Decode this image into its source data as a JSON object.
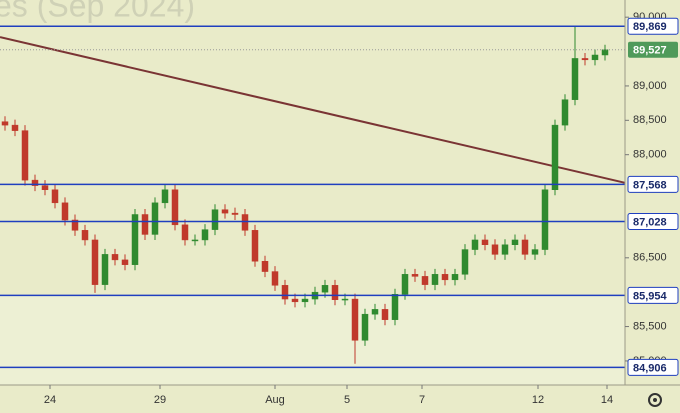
{
  "chart_data": {
    "type": "candlestick",
    "title": "es (Sep 2024)",
    "x": [
      0,
      1,
      2,
      3,
      4,
      5,
      6,
      7,
      8,
      9,
      10,
      11,
      12,
      13,
      14,
      15,
      16,
      17,
      18,
      19,
      20,
      21,
      22,
      23,
      24,
      25,
      26,
      27,
      28,
      29,
      30,
      31,
      32,
      33,
      34,
      35,
      36,
      37,
      38,
      39,
      40,
      41,
      42,
      43,
      44,
      45,
      46,
      47,
      48,
      49,
      50,
      51,
      52,
      53,
      54,
      55,
      56,
      57,
      58,
      59,
      60
    ],
    "open": [
      88480,
      88430,
      88350,
      87630,
      87550,
      87490,
      87300,
      87050,
      86900,
      86760,
      86110,
      86550,
      86470,
      86400,
      87130,
      86840,
      87300,
      87490,
      86980,
      86760,
      86760,
      86910,
      87200,
      87150,
      87130,
      86900,
      86450,
      86300,
      86100,
      85900,
      85860,
      85900,
      86000,
      86100,
      85890,
      85900,
      85300,
      85680,
      85750,
      85600,
      85970,
      86260,
      86230,
      86110,
      86260,
      86180,
      86260,
      86620,
      86760,
      86690,
      86550,
      86690,
      86760,
      86550,
      86620,
      87490,
      88430,
      88800,
      89400,
      89380,
      89450
    ],
    "high": [
      88560,
      88510,
      88430,
      87710,
      87630,
      87570,
      87380,
      87130,
      86980,
      86840,
      86630,
      86630,
      86550,
      87210,
      87210,
      87380,
      87570,
      87570,
      87060,
      86840,
      86990,
      87280,
      87280,
      87230,
      87210,
      86980,
      86530,
      86380,
      86180,
      85980,
      85980,
      86080,
      86180,
      86180,
      85980,
      85980,
      85760,
      85830,
      85830,
      86050,
      86340,
      86340,
      86310,
      86340,
      86340,
      86340,
      86700,
      86840,
      86840,
      86770,
      86770,
      86840,
      86840,
      86700,
      87570,
      88510,
      88880,
      89869,
      89480,
      89530,
      89600
    ],
    "low": [
      88350,
      88270,
      87550,
      87470,
      87410,
      87220,
      86970,
      86820,
      86680,
      85990,
      86030,
      86390,
      86320,
      86320,
      86760,
      86760,
      87220,
      86900,
      86680,
      86680,
      86680,
      86830,
      87070,
      87050,
      86820,
      86370,
      86220,
      86020,
      85820,
      85780,
      85780,
      85820,
      85920,
      85810,
      85810,
      84960,
      85220,
      85600,
      85520,
      85520,
      85890,
      86150,
      86030,
      86030,
      86100,
      86100,
      86180,
      86540,
      86610,
      86470,
      86470,
      86610,
      86470,
      86470,
      86540,
      87410,
      88350,
      88720,
      89300,
      89300,
      89370
    ],
    "close": [
      88430,
      88350,
      87630,
      87550,
      87490,
      87300,
      87050,
      86900,
      86760,
      86110,
      86550,
      86470,
      86400,
      87130,
      86840,
      87300,
      87490,
      86980,
      86760,
      86760,
      86910,
      87200,
      87150,
      87130,
      86900,
      86450,
      86300,
      86100,
      85900,
      85860,
      85900,
      86000,
      86100,
      85890,
      85900,
      85300,
      85680,
      85750,
      85600,
      85970,
      86260,
      86230,
      86110,
      86260,
      86180,
      86260,
      86620,
      86760,
      86690,
      86550,
      86690,
      86760,
      86550,
      86620,
      87490,
      88430,
      88800,
      89400,
      89380,
      89450,
      89527
    ],
    "up_color": "#2f8a2f",
    "down_color": "#c0392b",
    "xlim": [
      -0.5,
      62
    ],
    "ylim": [
      84650,
      90250
    ],
    "xticks": [
      {
        "value": 4.5,
        "label": "24"
      },
      {
        "value": 15.5,
        "label": "29"
      },
      {
        "value": 27,
        "label": "Aug"
      },
      {
        "value": 34.2,
        "label": "5"
      },
      {
        "value": 41.7,
        "label": "7"
      },
      {
        "value": 53.3,
        "label": "12"
      },
      {
        "value": 60.2,
        "label": "14"
      }
    ],
    "yticks": [
      {
        "value": 90000,
        "label": "90,000"
      },
      {
        "value": 89000,
        "label": "89,000"
      },
      {
        "value": 88500,
        "label": "88,500"
      },
      {
        "value": 88000,
        "label": "88,000"
      },
      {
        "value": 86500,
        "label": "86,500"
      },
      {
        "value": 85500,
        "label": "85,500"
      },
      {
        "value": 85000,
        "label": "85,000"
      }
    ],
    "levels": [
      {
        "value": 89869,
        "label": "89,869"
      },
      {
        "value": 87568,
        "label": "87,568"
      },
      {
        "value": 87028,
        "label": "87,028"
      },
      {
        "value": 85954,
        "label": "85,954"
      },
      {
        "value": 84906,
        "label": "84,906"
      }
    ],
    "level_color": "#1f3fbf",
    "last_price": {
      "value": 89527,
      "label": "89,527"
    },
    "trend_line": [
      89710,
      87591
    ],
    "trend_color": "#7a3434"
  }
}
